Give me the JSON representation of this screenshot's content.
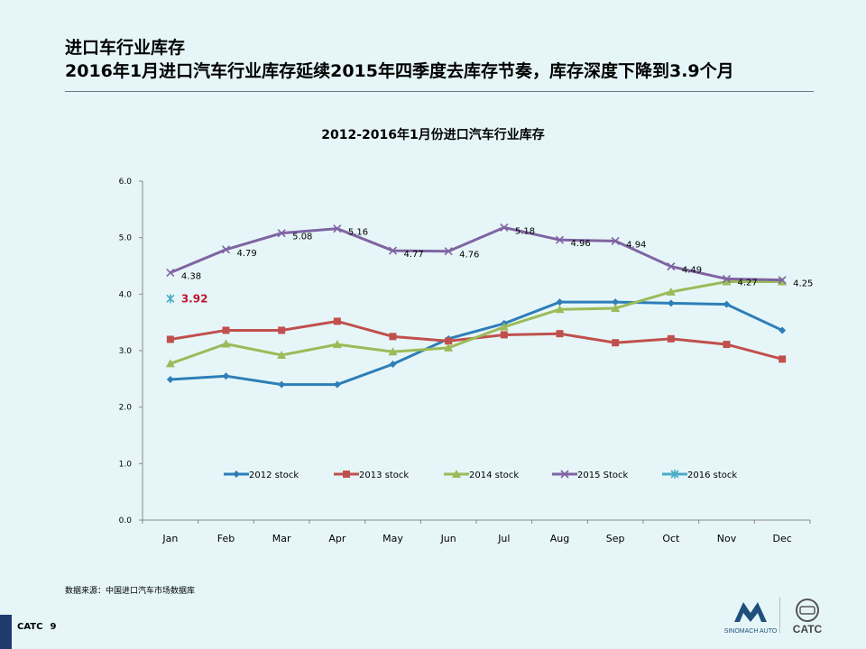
{
  "page": {
    "title_line1": "进口车行业库存",
    "title_line2": "2016年1月进口汽车行业库存延续2015年四季度去库存节奏，库存深度下降到3.9个月",
    "source": "数据来源：中国进口汽车市场数据库",
    "footer_org": "CATC",
    "footer_page": "9",
    "logo1_text": "SINOMACH AUTO",
    "logo2_text": "CATC"
  },
  "chart_data": {
    "type": "line",
    "title": "2012-2016年1月份进口汽车行业库存",
    "xlabel": "",
    "ylabel": "",
    "ylim": [
      0,
      6
    ],
    "yticks": [
      "0.0",
      "1.0",
      "2.0",
      "3.0",
      "4.0",
      "5.0",
      "6.0"
    ],
    "categories": [
      "Jan",
      "Feb",
      "Mar",
      "Apr",
      "May",
      "Jun",
      "Jul",
      "Aug",
      "Sep",
      "Oct",
      "Nov",
      "Dec"
    ],
    "grid": false,
    "legend_position": "bottom",
    "series": [
      {
        "name": "2012 stock",
        "color": "#2e7eb8",
        "marker": "diamond",
        "values": [
          2.49,
          2.55,
          2.4,
          2.4,
          2.76,
          3.21,
          3.48,
          3.86,
          3.86,
          3.84,
          3.82,
          3.36
        ]
      },
      {
        "name": "2013 stock",
        "color": "#c0504d",
        "marker": "square",
        "values": [
          3.2,
          3.36,
          3.36,
          3.52,
          3.25,
          3.17,
          3.28,
          3.3,
          3.14,
          3.21,
          3.11,
          2.85
        ]
      },
      {
        "name": "2014 stock",
        "color": "#9bbb59",
        "marker": "triangle",
        "values": [
          2.77,
          3.12,
          2.92,
          3.11,
          2.98,
          3.05,
          3.42,
          3.73,
          3.75,
          4.04,
          4.22,
          4.22
        ]
      },
      {
        "name": "2015 Stock",
        "color": "#8064a2",
        "marker": "x",
        "values": [
          4.38,
          4.79,
          5.08,
          5.16,
          4.77,
          4.76,
          5.18,
          4.96,
          4.94,
          4.49,
          4.27,
          4.25
        ],
        "labels": [
          "4.38",
          "4.79",
          "5.08",
          "5.16",
          "4.77",
          "4.76",
          "5.18",
          "4.96",
          "4.94",
          "4.49",
          "4.27",
          "4.25"
        ]
      },
      {
        "name": "2016  stock",
        "color": "#4bacc6",
        "marker": "asterisk",
        "values": [
          3.92,
          null,
          null,
          null,
          null,
          null,
          null,
          null,
          null,
          null,
          null,
          null
        ],
        "labels": [
          "3.92"
        ],
        "label_color": "#c0172b"
      }
    ]
  }
}
